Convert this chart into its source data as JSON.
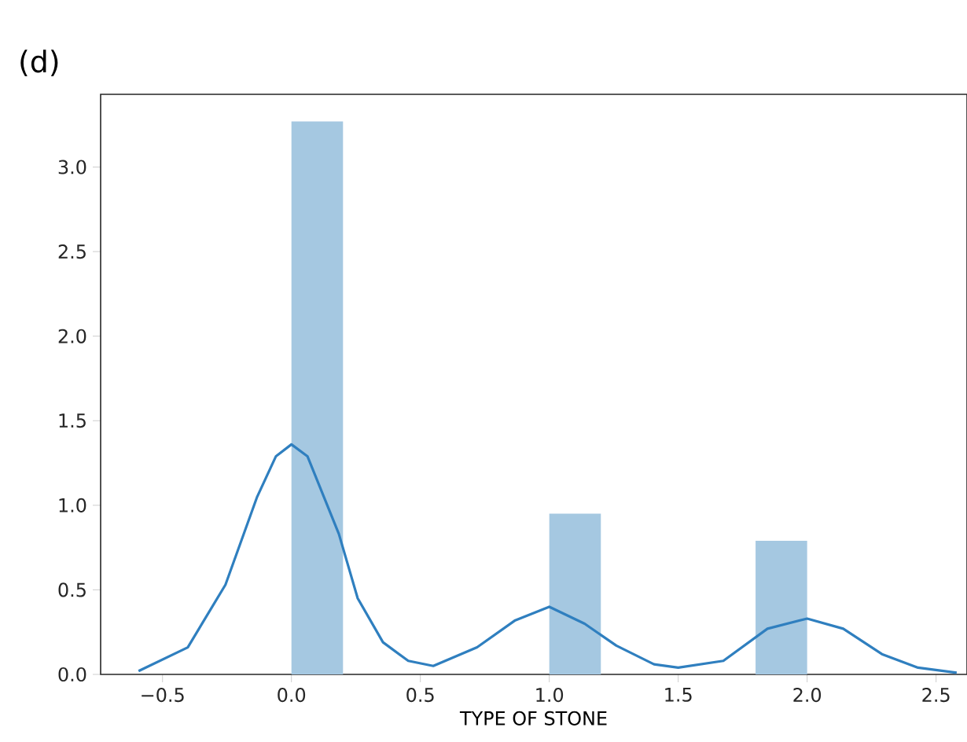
{
  "chart_data": {
    "type": "histogram",
    "xlabel": "TYPE OF STONE",
    "annotations": [
      "(d)"
    ],
    "bins": [
      0,
      0.2,
      0.4,
      0.6,
      0.8,
      1.0,
      1.2,
      1.4,
      1.6,
      1.8,
      2.0
    ],
    "values": [
      3.27,
      0,
      0,
      0,
      0,
      0.95,
      0,
      0,
      0,
      0.79
    ],
    "color": "#a5c8e1",
    "series": [
      {
        "type": "line",
        "color": "#2f7fbf",
        "x": [
          -0.593,
          -0.402,
          -0.256,
          -0.133,
          -0.06,
          0.0,
          0.062,
          0.184,
          0.257,
          0.355,
          0.453,
          0.55,
          0.72,
          0.868,
          1.0,
          1.137,
          1.26,
          1.406,
          1.5,
          1.675,
          1.846,
          2.0,
          2.14,
          2.29,
          2.43,
          2.58
        ],
        "values": [
          0.02,
          0.16,
          0.53,
          1.05,
          1.29,
          1.36,
          1.29,
          0.83,
          0.45,
          0.19,
          0.08,
          0.05,
          0.16,
          0.32,
          0.4,
          0.3,
          0.17,
          0.06,
          0.04,
          0.08,
          0.27,
          0.33,
          0.27,
          0.12,
          0.04,
          0.01
        ]
      }
    ],
    "xlim": [
      -0.74,
      2.62
    ],
    "ylim": [
      0,
      3.43
    ],
    "xticks": [
      {
        "value": -0.5,
        "label": "−0.5"
      },
      {
        "value": 0,
        "label": "0.0"
      },
      {
        "value": 0.5,
        "label": "0.5"
      },
      {
        "value": 1,
        "label": "1.0"
      },
      {
        "value": 1.5,
        "label": "1.5"
      },
      {
        "value": 2,
        "label": "2.0"
      },
      {
        "value": 2.5,
        "label": "2.5"
      }
    ],
    "yticks": [
      {
        "value": 0,
        "label": "0.0"
      },
      {
        "value": 0.5,
        "label": "0.5"
      },
      {
        "value": 1,
        "label": "1.0"
      },
      {
        "value": 1.5,
        "label": "1.5"
      },
      {
        "value": 2,
        "label": "2.0"
      },
      {
        "value": 2.5,
        "label": "2.5"
      },
      {
        "value": 3,
        "label": "3.0"
      }
    ],
    "grid": false
  }
}
